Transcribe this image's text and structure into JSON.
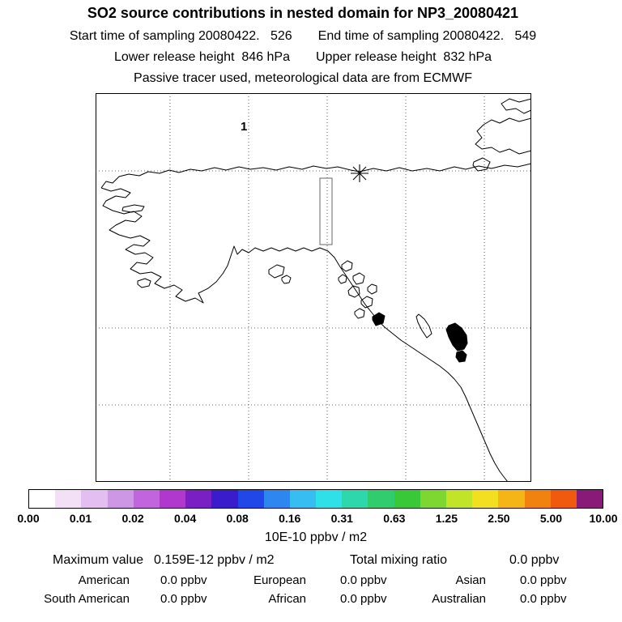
{
  "header": {
    "title": "SO2 source contributions in nested domain for NP3_20080421",
    "start_time": "Start time of sampling 20080422.   526",
    "end_time": "End time of sampling 20080422.   549",
    "lower_release": "Lower release height  846 hPa",
    "upper_release": "Upper release height  832 hPa",
    "tracer_line": "Passive tracer used, meteorological data are from ECMWF"
  },
  "map": {
    "region_label": "1",
    "marker_icon": "release-location-asterisk-icon"
  },
  "colorbar": {
    "ticks": [
      "0.00",
      "0.01",
      "0.02",
      "0.04",
      "0.08",
      "0.16",
      "0.31",
      "0.63",
      "1.25",
      "2.50",
      "5.00",
      "10.00"
    ],
    "units": "10E-10 ppbv / m2",
    "colors": [
      "#ffffff",
      "#f3e0f7",
      "#e2bff0",
      "#cd97e6",
      "#c264dd",
      "#b038cf",
      "#7a1fc4",
      "#3a1ccc",
      "#2247e8",
      "#2e86f0",
      "#38bdf2",
      "#30e0e8",
      "#2ed8ac",
      "#30cc6e",
      "#38c838",
      "#7ed630",
      "#c2e428",
      "#f2e020",
      "#f5b517",
      "#f2820f",
      "#ef5a0e",
      "#8a1a78"
    ]
  },
  "stats": {
    "max_label": "Maximum value",
    "max_value": "0.159E-12 ppbv / m2",
    "total_label": "Total mixing ratio",
    "total_value": "0.0 ppbv",
    "regions": [
      {
        "label": "American",
        "value": "0.0 ppbv"
      },
      {
        "label": "European",
        "value": "0.0 ppbv"
      },
      {
        "label": "Asian",
        "value": "0.0 ppbv"
      },
      {
        "label": "South American",
        "value": "0.0 ppbv"
      },
      {
        "label": "African",
        "value": "0.0 ppbv"
      },
      {
        "label": "Australian",
        "value": "0.0 ppbv"
      }
    ]
  },
  "chart_data": {
    "type": "heatmap",
    "title": "SO2 source contributions in nested domain for NP3_20080421",
    "subtitle": [
      "Start time of sampling 20080422. 526",
      "End time of sampling 20080422. 549",
      "Lower release height 846 hPa",
      "Upper release height 832 hPa",
      "Passive tracer used, meteorological data are from ECMWF"
    ],
    "colorbar_scale": [
      0.0,
      0.01,
      0.02,
      0.04,
      0.08,
      0.16,
      0.31,
      0.63,
      1.25,
      2.5,
      5.0,
      10.0
    ],
    "colorbar_units": "10E-10 ppbv / m2",
    "maximum_value": "0.159E-12 ppbv / m2",
    "total_mixing_ratio": "0.0 ppbv",
    "region_contributions": {
      "American": "0.0 ppbv",
      "European": "0.0 ppbv",
      "Asian": "0.0 ppbv",
      "South American": "0.0 ppbv",
      "African": "0.0 ppbv",
      "Australian": "0.0 ppbv"
    },
    "annotations": [
      "1 (nested region label)",
      "asterisk release marker on Arctic coast"
    ]
  }
}
